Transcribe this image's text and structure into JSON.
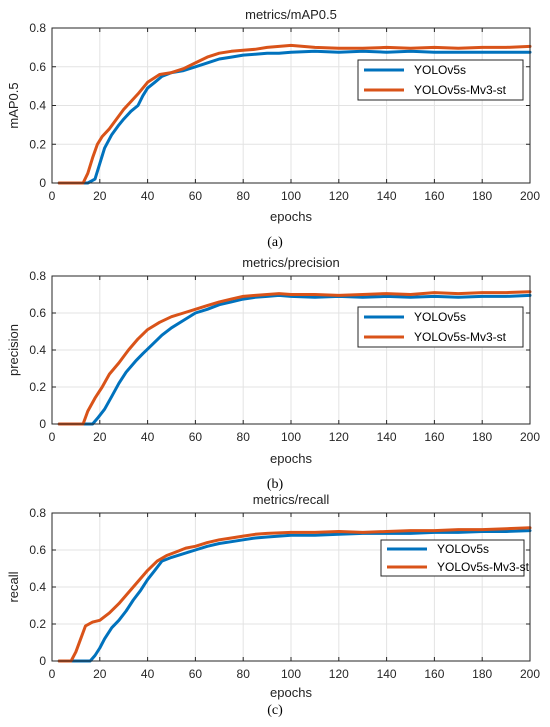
{
  "chart_data": [
    {
      "type": "line",
      "title": "metrics/mAP0.5",
      "xlabel": "epochs",
      "ylabel": "mAP0.5",
      "caption": "(a)",
      "xlim": [
        0,
        200
      ],
      "ylim": [
        0,
        0.8
      ],
      "xticks": [
        "0",
        "20",
        "40",
        "60",
        "80",
        "100",
        "120",
        "140",
        "160",
        "180",
        "200"
      ],
      "yticks": [
        "0",
        "0.2",
        "0.4",
        "0.6",
        "0.8"
      ],
      "grid": true,
      "legend_position": "top-right",
      "series": [
        {
          "name": "YOLOv5s",
          "color": "#0072BD",
          "points": [
            [
              3,
              0
            ],
            [
              15,
              0
            ],
            [
              18,
              0.02
            ],
            [
              20,
              0.1
            ],
            [
              22,
              0.18
            ],
            [
              25,
              0.25
            ],
            [
              28,
              0.3
            ],
            [
              30,
              0.33
            ],
            [
              33,
              0.37
            ],
            [
              36,
              0.4
            ],
            [
              38,
              0.45
            ],
            [
              40,
              0.49
            ],
            [
              43,
              0.52
            ],
            [
              46,
              0.55
            ],
            [
              50,
              0.57
            ],
            [
              55,
              0.58
            ],
            [
              60,
              0.6
            ],
            [
              65,
              0.62
            ],
            [
              70,
              0.64
            ],
            [
              75,
              0.65
            ],
            [
              80,
              0.66
            ],
            [
              85,
              0.665
            ],
            [
              90,
              0.67
            ],
            [
              95,
              0.67
            ],
            [
              100,
              0.675
            ],
            [
              110,
              0.68
            ],
            [
              120,
              0.675
            ],
            [
              130,
              0.68
            ],
            [
              140,
              0.675
            ],
            [
              150,
              0.68
            ],
            [
              160,
              0.675
            ],
            [
              170,
              0.675
            ],
            [
              180,
              0.675
            ],
            [
              190,
              0.675
            ],
            [
              200,
              0.675
            ]
          ]
        },
        {
          "name": "YOLOv5s-Mv3-st",
          "color": "#D95319",
          "points": [
            [
              3,
              0
            ],
            [
              13,
              0
            ],
            [
              15,
              0.05
            ],
            [
              17,
              0.13
            ],
            [
              19,
              0.2
            ],
            [
              21,
              0.24
            ],
            [
              24,
              0.28
            ],
            [
              27,
              0.33
            ],
            [
              30,
              0.38
            ],
            [
              33,
              0.42
            ],
            [
              36,
              0.46
            ],
            [
              40,
              0.52
            ],
            [
              45,
              0.56
            ],
            [
              50,
              0.57
            ],
            [
              55,
              0.59
            ],
            [
              60,
              0.62
            ],
            [
              65,
              0.65
            ],
            [
              70,
              0.67
            ],
            [
              75,
              0.68
            ],
            [
              80,
              0.685
            ],
            [
              85,
              0.69
            ],
            [
              90,
              0.7
            ],
            [
              100,
              0.71
            ],
            [
              110,
              0.7
            ],
            [
              120,
              0.695
            ],
            [
              130,
              0.695
            ],
            [
              140,
              0.7
            ],
            [
              150,
              0.695
            ],
            [
              160,
              0.7
            ],
            [
              170,
              0.695
            ],
            [
              180,
              0.7
            ],
            [
              190,
              0.7
            ],
            [
              200,
              0.705
            ]
          ]
        }
      ]
    },
    {
      "type": "line",
      "title": "metrics/precision",
      "xlabel": "epochs",
      "ylabel": "precision",
      "caption": "(b)",
      "xlim": [
        0,
        200
      ],
      "ylim": [
        0,
        0.8
      ],
      "xticks": [
        "0",
        "20",
        "40",
        "60",
        "80",
        "100",
        "120",
        "140",
        "160",
        "180",
        "200"
      ],
      "yticks": [
        "0",
        "0.2",
        "0.4",
        "0.6",
        "0.8"
      ],
      "grid": true,
      "legend_position": "top-right",
      "series": [
        {
          "name": "YOLOv5s",
          "color": "#0072BD",
          "points": [
            [
              3,
              0
            ],
            [
              17,
              0
            ],
            [
              19,
              0.03
            ],
            [
              22,
              0.08
            ],
            [
              25,
              0.15
            ],
            [
              28,
              0.22
            ],
            [
              31,
              0.28
            ],
            [
              35,
              0.34
            ],
            [
              38,
              0.38
            ],
            [
              42,
              0.43
            ],
            [
              46,
              0.48
            ],
            [
              50,
              0.52
            ],
            [
              55,
              0.56
            ],
            [
              60,
              0.6
            ],
            [
              65,
              0.62
            ],
            [
              70,
              0.645
            ],
            [
              75,
              0.66
            ],
            [
              80,
              0.675
            ],
            [
              85,
              0.685
            ],
            [
              90,
              0.69
            ],
            [
              95,
              0.695
            ],
            [
              100,
              0.69
            ],
            [
              110,
              0.685
            ],
            [
              120,
              0.69
            ],
            [
              130,
              0.685
            ],
            [
              140,
              0.69
            ],
            [
              150,
              0.685
            ],
            [
              160,
              0.69
            ],
            [
              170,
              0.685
            ],
            [
              180,
              0.69
            ],
            [
              190,
              0.69
            ],
            [
              200,
              0.695
            ]
          ]
        },
        {
          "name": "YOLOv5s-Mv3-st",
          "color": "#D95319",
          "points": [
            [
              3,
              0
            ],
            [
              13,
              0
            ],
            [
              15,
              0.07
            ],
            [
              18,
              0.14
            ],
            [
              21,
              0.2
            ],
            [
              24,
              0.27
            ],
            [
              28,
              0.33
            ],
            [
              32,
              0.4
            ],
            [
              36,
              0.46
            ],
            [
              40,
              0.51
            ],
            [
              45,
              0.55
            ],
            [
              50,
              0.58
            ],
            [
              55,
              0.6
            ],
            [
              60,
              0.62
            ],
            [
              65,
              0.64
            ],
            [
              70,
              0.66
            ],
            [
              75,
              0.675
            ],
            [
              80,
              0.69
            ],
            [
              85,
              0.695
            ],
            [
              90,
              0.7
            ],
            [
              95,
              0.705
            ],
            [
              100,
              0.7
            ],
            [
              110,
              0.7
            ],
            [
              120,
              0.695
            ],
            [
              130,
              0.7
            ],
            [
              140,
              0.705
            ],
            [
              150,
              0.7
            ],
            [
              160,
              0.71
            ],
            [
              170,
              0.705
            ],
            [
              180,
              0.71
            ],
            [
              190,
              0.71
            ],
            [
              200,
              0.715
            ]
          ]
        }
      ]
    },
    {
      "type": "line",
      "title": "metrics/recall",
      "xlabel": "epochs",
      "ylabel": "recall",
      "caption": "(c)",
      "xlim": [
        0,
        200
      ],
      "ylim": [
        0,
        0.8
      ],
      "xticks": [
        "0",
        "20",
        "40",
        "60",
        "80",
        "100",
        "120",
        "140",
        "160",
        "180",
        "200"
      ],
      "yticks": [
        "0",
        "0.2",
        "0.4",
        "0.6",
        "0.8"
      ],
      "grid": true,
      "legend_position": "top-right",
      "series": [
        {
          "name": "YOLOv5s",
          "color": "#0072BD",
          "points": [
            [
              3,
              0
            ],
            [
              16,
              0
            ],
            [
              18,
              0.03
            ],
            [
              20,
              0.07
            ],
            [
              22,
              0.12
            ],
            [
              25,
              0.18
            ],
            [
              28,
              0.22
            ],
            [
              31,
              0.27
            ],
            [
              34,
              0.33
            ],
            [
              37,
              0.38
            ],
            [
              40,
              0.44
            ],
            [
              43,
              0.49
            ],
            [
              46,
              0.54
            ],
            [
              50,
              0.56
            ],
            [
              55,
              0.58
            ],
            [
              60,
              0.6
            ],
            [
              65,
              0.62
            ],
            [
              70,
              0.635
            ],
            [
              75,
              0.645
            ],
            [
              80,
              0.655
            ],
            [
              85,
              0.665
            ],
            [
              90,
              0.67
            ],
            [
              100,
              0.68
            ],
            [
              110,
              0.68
            ],
            [
              120,
              0.685
            ],
            [
              130,
              0.69
            ],
            [
              140,
              0.69
            ],
            [
              150,
              0.69
            ],
            [
              160,
              0.695
            ],
            [
              170,
              0.695
            ],
            [
              180,
              0.7
            ],
            [
              190,
              0.7
            ],
            [
              200,
              0.705
            ]
          ]
        },
        {
          "name": "YOLOv5s-Mv3-st",
          "color": "#D95319",
          "points": [
            [
              3,
              0
            ],
            [
              8,
              0
            ],
            [
              10,
              0.05
            ],
            [
              12,
              0.12
            ],
            [
              14,
              0.19
            ],
            [
              17,
              0.21
            ],
            [
              20,
              0.22
            ],
            [
              24,
              0.26
            ],
            [
              28,
              0.31
            ],
            [
              32,
              0.37
            ],
            [
              36,
              0.43
            ],
            [
              40,
              0.49
            ],
            [
              44,
              0.54
            ],
            [
              48,
              0.57
            ],
            [
              52,
              0.59
            ],
            [
              56,
              0.61
            ],
            [
              60,
              0.62
            ],
            [
              65,
              0.64
            ],
            [
              70,
              0.655
            ],
            [
              75,
              0.665
            ],
            [
              80,
              0.675
            ],
            [
              85,
              0.685
            ],
            [
              90,
              0.69
            ],
            [
              100,
              0.695
            ],
            [
              110,
              0.695
            ],
            [
              120,
              0.7
            ],
            [
              130,
              0.695
            ],
            [
              140,
              0.7
            ],
            [
              150,
              0.705
            ],
            [
              160,
              0.705
            ],
            [
              170,
              0.71
            ],
            [
              180,
              0.71
            ],
            [
              190,
              0.715
            ],
            [
              200,
              0.72
            ]
          ]
        }
      ]
    }
  ]
}
